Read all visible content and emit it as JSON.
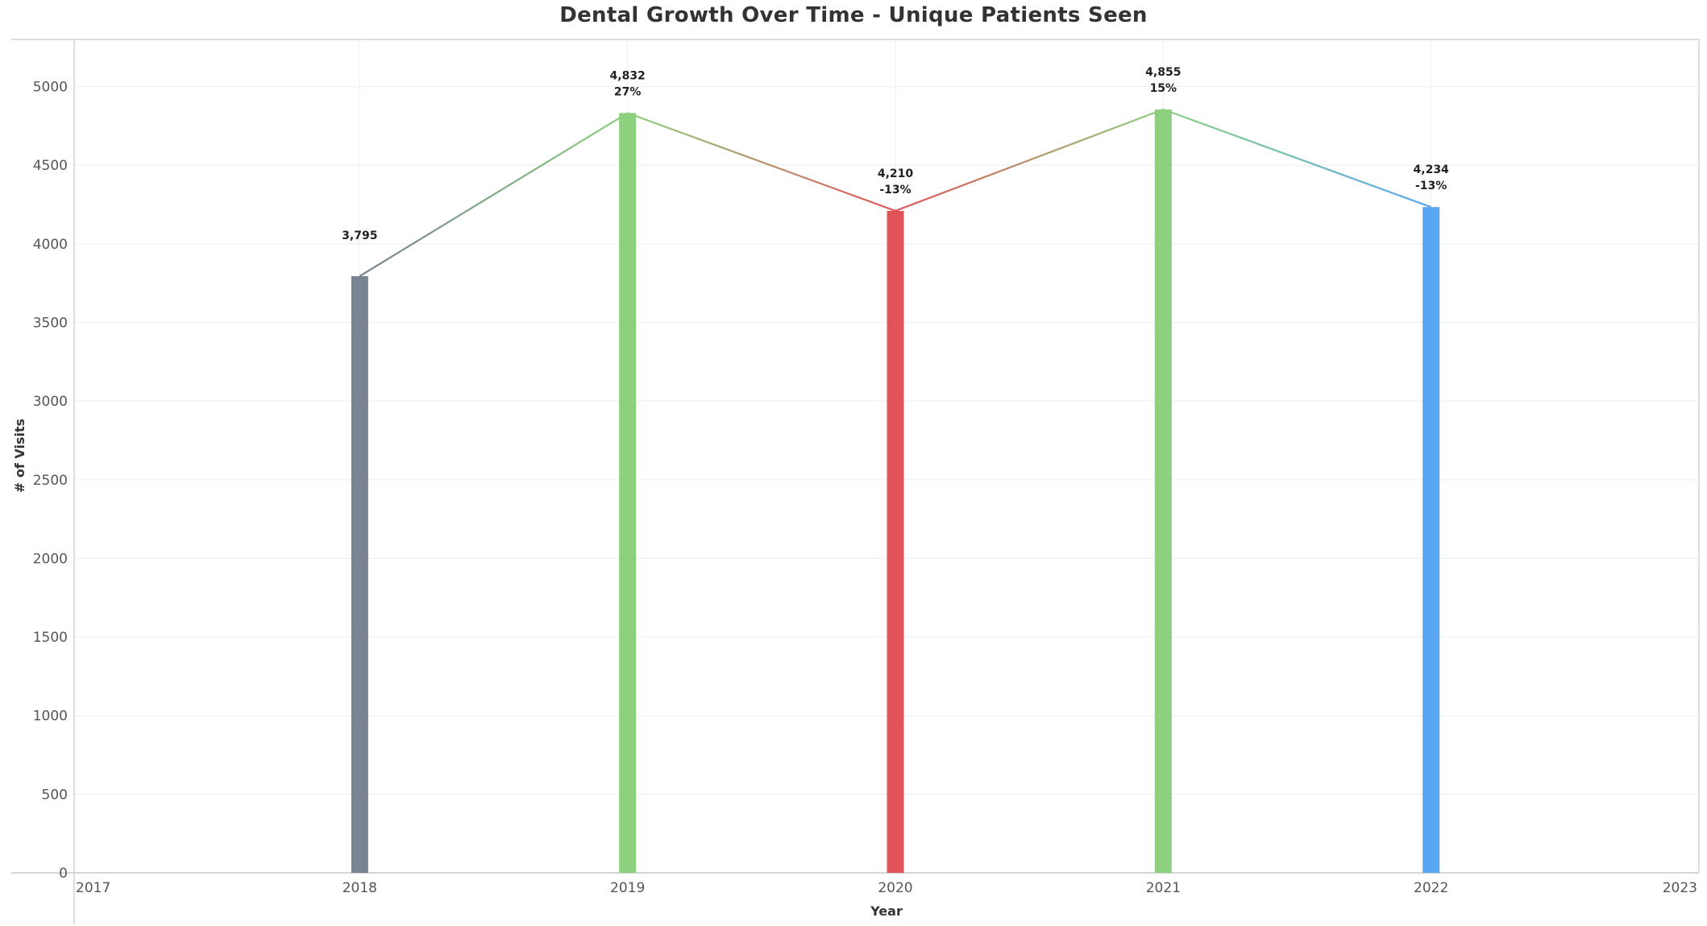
{
  "chart_data": {
    "type": "bar",
    "title": "Dental Growth Over Time - Unique Patients Seen",
    "xlabel": "Year",
    "ylabel": "# of Visits",
    "x_ticks": [
      "2017",
      "2018",
      "2019",
      "2020",
      "2021",
      "2022",
      "2023"
    ],
    "xlim": [
      2017,
      2023
    ],
    "ylim": [
      0,
      5300
    ],
    "y_ticks": [
      0,
      500,
      1000,
      1500,
      2000,
      2500,
      3000,
      3500,
      4000,
      4500,
      5000
    ],
    "grid": true,
    "categories": [
      "2018",
      "2019",
      "2020",
      "2021",
      "2022"
    ],
    "values": [
      3795,
      4832,
      4210,
      4855,
      4234
    ],
    "value_labels": [
      "3,795",
      "4,832",
      "4,210",
      "4,855",
      "4,234"
    ],
    "pct_labels": [
      "",
      "27%",
      "-13%",
      "15%",
      "-13%"
    ],
    "bar_colors": [
      "#7a8391",
      "#8dd17e",
      "#e05459",
      "#8dd17e",
      "#58a7f0"
    ],
    "line_segment_colors": [
      [
        "#7a8391",
        "#8dd17e"
      ],
      [
        "#8dd17e",
        "#e05459"
      ],
      [
        "#e05459",
        "#8dd17e"
      ],
      [
        "#8dd17e",
        "#58a7f0"
      ]
    ],
    "overlay": "line connecting bar tops"
  }
}
